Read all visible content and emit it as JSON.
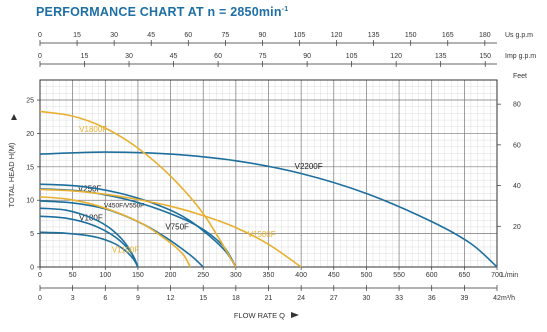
{
  "chart_data": {
    "type": "line",
    "title": "PERFORMANCE CHART AT n = 2850min",
    "title_exponent": "-1",
    "xlabel": "FLOW RATE  Q",
    "ylabel": "TOTAL HEAD  H(M)",
    "x_unit_primary": "L/min",
    "x_unit_bottom": "m³/h",
    "x_unit_us": "Us g.p.m",
    "x_unit_imp": "Imp g.p.m",
    "y_unit_feet": "Feet",
    "xlim": [
      0,
      700
    ],
    "ylim": [
      0,
      28
    ],
    "x_ticks_lmin": [
      "0",
      "50",
      "100",
      "150",
      "200",
      "250",
      "300",
      "350",
      "400",
      "450",
      "500",
      "550",
      "600",
      "650",
      "700"
    ],
    "x_ticks_m3h": [
      "0",
      "3",
      "6",
      "9",
      "12",
      "15",
      "18",
      "21",
      "24",
      "27",
      "30",
      "33",
      "36",
      "39",
      "42"
    ],
    "x_ticks_usgpm": [
      "0",
      "15",
      "30",
      "45",
      "60",
      "75",
      "90",
      "105",
      "120",
      "135",
      "150",
      "165",
      "180"
    ],
    "x_ticks_impgpm": [
      "0",
      "15",
      "30",
      "45",
      "60",
      "75",
      "90",
      "105",
      "120",
      "135",
      "150"
    ],
    "y_ticks_m": [
      "0",
      "5",
      "10",
      "15",
      "20",
      "25"
    ],
    "y_ticks_feet": [
      "20",
      "40",
      "60",
      "80"
    ],
    "grid": true,
    "series": [
      {
        "name": "V180F",
        "color": "#1d6f9e",
        "label_color": "#222222",
        "x": [
          0,
          40,
          80,
          110,
          130,
          143,
          150
        ],
        "y": [
          5.2,
          5.05,
          4.6,
          3.7,
          2.5,
          1.2,
          0
        ]
      },
      {
        "name": "",
        "color": "#1d6f9e",
        "x": [
          0,
          40,
          80,
          115,
          140,
          150
        ],
        "y": [
          7.6,
          7.3,
          6.3,
          4.5,
          2.1,
          0
        ]
      },
      {
        "name": "",
        "color": "#1d6f9e",
        "x": [
          0,
          40,
          80,
          110,
          135,
          150
        ],
        "y": [
          8.8,
          8.5,
          7.3,
          5.6,
          3.0,
          0
        ]
      },
      {
        "name": "V250F",
        "color": "#1d6f9e",
        "label_color": "#222222",
        "x": [
          0,
          50,
          100,
          150,
          190,
          230,
          250
        ],
        "y": [
          9.9,
          9.6,
          8.7,
          6.8,
          4.6,
          1.8,
          0
        ]
      },
      {
        "name": "V450F/V550F",
        "color": "#1d6f9e",
        "label_color": "#222222",
        "x": [
          0,
          60,
          120,
          180,
          230,
          280,
          300
        ],
        "y": [
          12.4,
          12.1,
          11.1,
          9.3,
          6.9,
          2.8,
          0
        ]
      },
      {
        "name": "V750F",
        "color": "#1d6f9e",
        "label_color": "#222222",
        "x": [
          0,
          60,
          120,
          180,
          240,
          280,
          300
        ],
        "y": [
          11.7,
          11.4,
          10.4,
          8.7,
          6.2,
          3.2,
          0
        ]
      },
      {
        "name": "V2200F",
        "color": "#1d6f9e",
        "label_color": "#222222",
        "x": [
          0,
          100,
          200,
          300,
          400,
          500,
          600,
          660,
          700
        ],
        "y": [
          16.9,
          17.2,
          16.9,
          15.9,
          14.0,
          11.0,
          6.8,
          3.5,
          0
        ]
      },
      {
        "name": "V1100F",
        "color": "#e8b030",
        "label_color": "#e8b030",
        "x": [
          0,
          40,
          80,
          120,
          160,
          200,
          220,
          230
        ],
        "y": [
          10.5,
          10.2,
          9.4,
          8.1,
          6.3,
          3.6,
          1.8,
          0
        ]
      },
      {
        "name": "V1500F",
        "color": "#e8b030",
        "label_color": "#e8b030",
        "x": [
          0,
          50,
          100,
          150,
          200,
          250,
          300,
          350,
          400
        ],
        "y": [
          11.6,
          11.4,
          10.9,
          10.1,
          9.1,
          7.7,
          5.9,
          3.4,
          0
        ]
      },
      {
        "name": "V1800F",
        "color": "#e8b030",
        "label_color": "#e8b030",
        "x": [
          0,
          50,
          100,
          150,
          200,
          250,
          300
        ],
        "y": [
          23.3,
          22.6,
          20.8,
          17.8,
          13.6,
          8.0,
          0
        ]
      }
    ]
  }
}
